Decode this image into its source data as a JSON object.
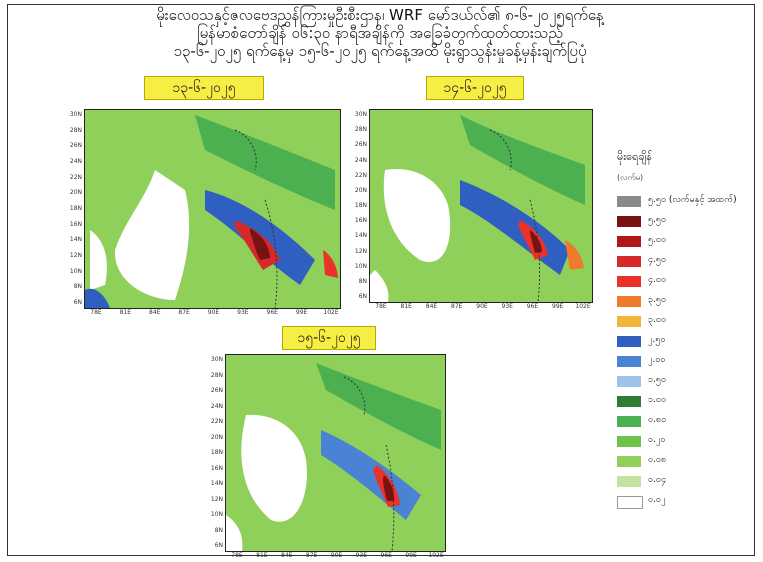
{
  "header": {
    "line1": "မိုးလေဝသနှင့်ဇလဗေဒညွှန်ကြားမှုဦးစီးဌာန၊ WRF မော်ဒယ်လ်၏ ၈-၆-၂၀၂၅ရက်နေ့",
    "line2": "မြန်မာစံတော်ချိန် ၀၆:၃၀ နာရီအချိန်ကို အခြေခံတွက်ထုတ်ထားသည့်",
    "line3": "၁၃-၆-၂၀၂၅ ရက်နေ့မှ ၁၅-၆-၂၀၂၅ ရက်နေ့အထိ မိုးရွာသွန်းမှုခန့်မှန်းချက်ပြပုံ"
  },
  "maps": [
    {
      "date": "၁၃-၆-၂၀၂၅"
    },
    {
      "date": "၁၄-၆-၂၀၂၅"
    },
    {
      "date": "၁၅-၆-၂၀၂၅"
    }
  ],
  "axes": {
    "lat_ticks": [
      "30N",
      "28N",
      "26N",
      "24N",
      "22N",
      "20N",
      "18N",
      "16N",
      "14N",
      "12N",
      "10N",
      "8N",
      "6N"
    ],
    "lon_ticks": [
      "78E",
      "81E",
      "84E",
      "87E",
      "90E",
      "93E",
      "96E",
      "99E",
      "102E"
    ]
  },
  "legend": {
    "title": "မိုးရေချိန်",
    "unit": "(လက်မ)",
    "items": [
      {
        "label": "၅.၅၀ (လက်မနှင့် အထက်)",
        "color": "#8a8a8a"
      },
      {
        "label": "၅.၅၀",
        "color": "#7a1212"
      },
      {
        "label": "၅.၀၀",
        "color": "#b01818"
      },
      {
        "label": "၄.၅၀",
        "color": "#d62a2a"
      },
      {
        "label": "၄.၀၀",
        "color": "#e8322a"
      },
      {
        "label": "၃.၅၀",
        "color": "#ef7a2c"
      },
      {
        "label": "၃.၀၀",
        "color": "#f2b43a"
      },
      {
        "label": "၂.၅၀",
        "color": "#2f5fc0"
      },
      {
        "label": "၂.၀၀",
        "color": "#4a82d4"
      },
      {
        "label": "၁.၅၀",
        "color": "#9ec2ec"
      },
      {
        "label": "၁.၀၀",
        "color": "#2e7d32"
      },
      {
        "label": "၀.၈၀",
        "color": "#4caf50"
      },
      {
        "label": "၀.၂၀",
        "color": "#6cc24a"
      },
      {
        "label": "၀.၀၈",
        "color": "#8fd05a"
      },
      {
        "label": "၀.၀၄",
        "color": "#c2e4a0"
      },
      {
        "label": "၀.၀၂",
        "color": "#ffffff"
      }
    ]
  }
}
